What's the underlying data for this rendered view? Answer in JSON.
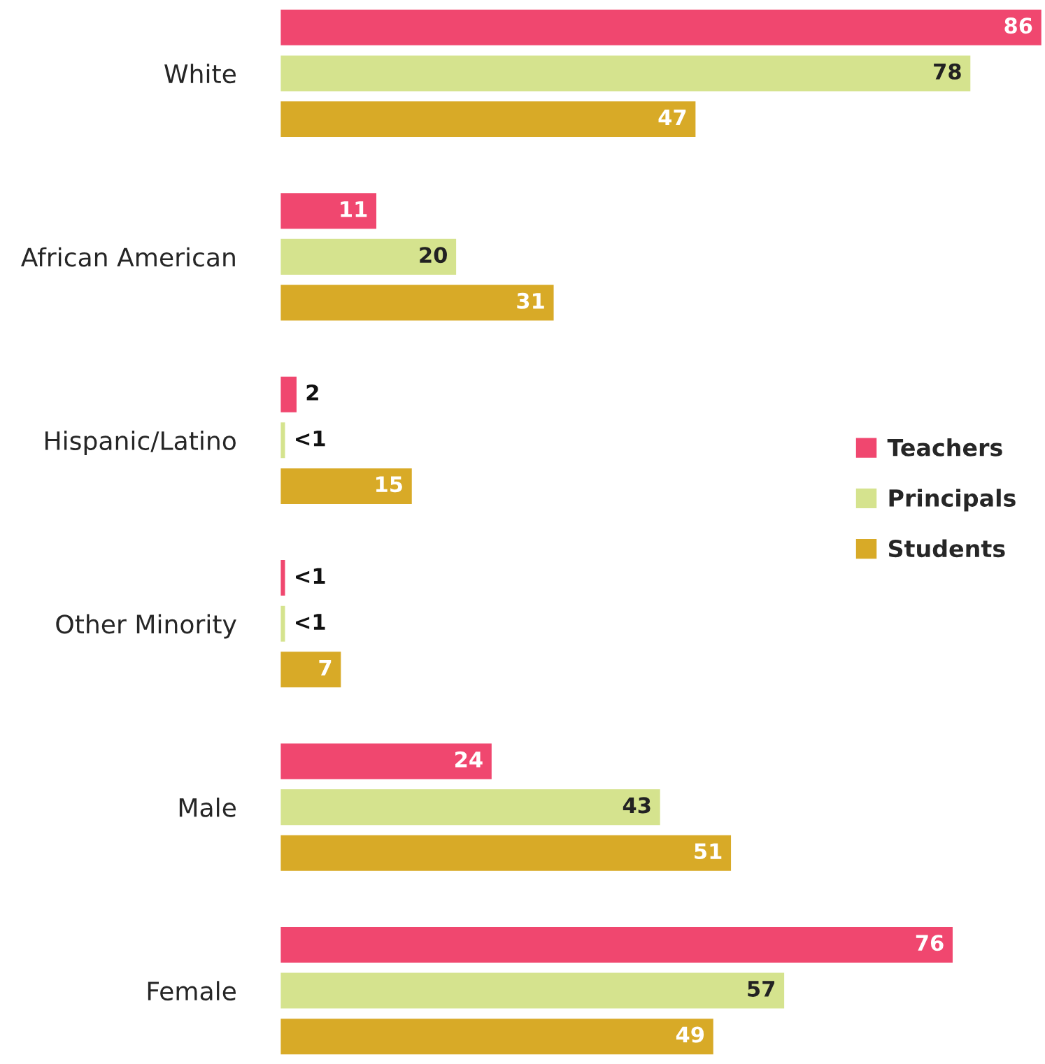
{
  "chart_data": {
    "type": "bar",
    "orientation": "horizontal",
    "categories": [
      "White",
      "African American",
      "Hispanic/Latino",
      "Other Minority",
      "Male",
      "Female"
    ],
    "series": [
      {
        "name": "Teachers",
        "color": "#f0476f",
        "values": [
          86,
          11,
          2,
          0.7,
          24,
          76
        ],
        "value_labels": [
          "86",
          "11",
          "2",
          "<1",
          "24",
          "76"
        ]
      },
      {
        "name": "Principals",
        "color": "#d5e38e",
        "values": [
          78,
          20,
          0.7,
          0.7,
          43,
          57
        ],
        "value_labels": [
          "78",
          "20",
          "<1",
          "<1",
          "43",
          "57"
        ]
      },
      {
        "name": "Students",
        "color": "#d8aa27",
        "values": [
          47,
          31,
          15,
          7,
          51,
          49
        ],
        "value_labels": [
          "47",
          "31",
          "15",
          "7",
          "51",
          "49"
        ]
      }
    ],
    "legend": "right",
    "tick_labels": "y",
    "grid": false
  }
}
